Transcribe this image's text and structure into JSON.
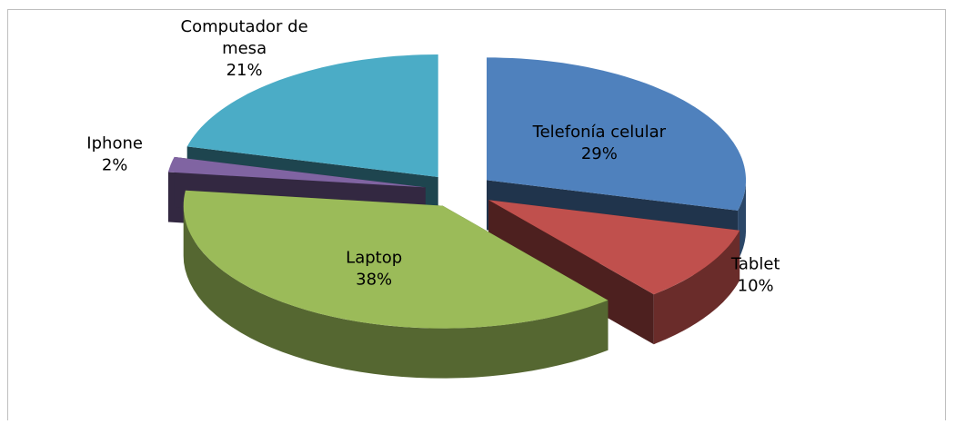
{
  "chart_data": {
    "type": "pie",
    "categories": [
      "Telefonía celular",
      "Tablet",
      "Laptop",
      "Iphone",
      "Computador de mesa"
    ],
    "values": [
      29,
      10,
      38,
      2,
      21
    ],
    "value_labels": [
      "29%",
      "10%",
      "38%",
      "2%",
      "21%"
    ],
    "colors": [
      "#4f81bd",
      "#c0504d",
      "#9bbb59",
      "#8064a2",
      "#4bacc6"
    ]
  }
}
